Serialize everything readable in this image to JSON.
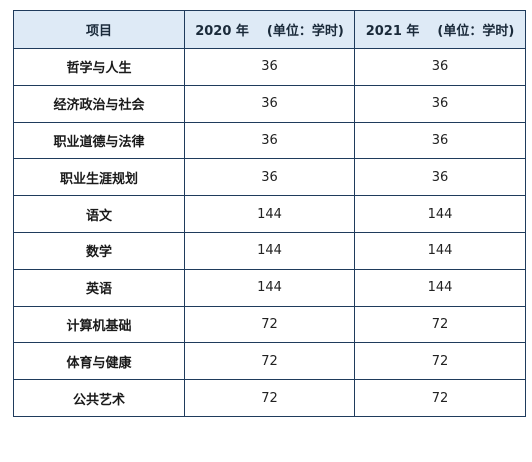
{
  "table": {
    "headers": {
      "item": "项目",
      "year2020": "2020 年",
      "year2021": "2021 年",
      "unit": "(单位：学时)"
    },
    "rows": [
      {
        "item": "哲学与人生",
        "y2020": "36",
        "y2021": "36"
      },
      {
        "item": "经济政治与社会",
        "y2020": "36",
        "y2021": "36"
      },
      {
        "item": "职业道德与法律",
        "y2020": "36",
        "y2021": "36"
      },
      {
        "item": "职业生涯规划",
        "y2020": "36",
        "y2021": "36"
      },
      {
        "item": "语文",
        "y2020": "144",
        "y2021": "144"
      },
      {
        "item": "数学",
        "y2020": "144",
        "y2021": "144"
      },
      {
        "item": "英语",
        "y2020": "144",
        "y2021": "144"
      },
      {
        "item": "计算机基础",
        "y2020": "72",
        "y2021": "72"
      },
      {
        "item": "体育与健康",
        "y2020": "72",
        "y2021": "72"
      },
      {
        "item": "公共艺术",
        "y2020": "72",
        "y2021": "72"
      }
    ]
  },
  "colors": {
    "header_bg": "#deeaf6",
    "border": "#1f3b5c"
  }
}
